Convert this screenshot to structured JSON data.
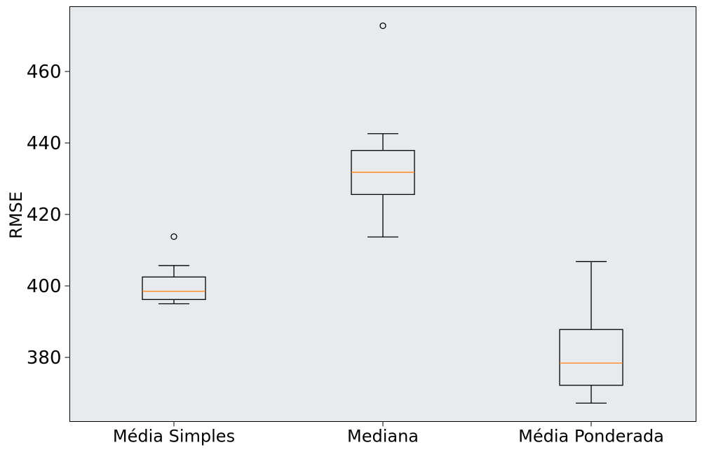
{
  "chart_data": {
    "type": "boxplot",
    "title": "",
    "xlabel": "",
    "ylabel": "RMSE",
    "ylim": [
      362,
      478
    ],
    "yticks": [
      380,
      400,
      420,
      440,
      460
    ],
    "grid": false,
    "categories": [
      "Média Simples",
      "Mediana",
      "Média Ponderada"
    ],
    "boxes": [
      {
        "name": "Média Simples",
        "whisker_low": 395.0,
        "q1": 396.2,
        "median": 398.5,
        "q3": 402.5,
        "whisker_high": 405.7,
        "outliers": [
          413.8
        ]
      },
      {
        "name": "Mediana",
        "whisker_low": 413.7,
        "q1": 425.6,
        "median": 431.8,
        "q3": 437.9,
        "whisker_high": 442.6,
        "outliers": [
          472.8
        ]
      },
      {
        "name": "Média Ponderada",
        "whisker_low": 367.2,
        "q1": 372.2,
        "median": 378.4,
        "q3": 387.8,
        "whisker_high": 406.8,
        "outliers": []
      }
    ]
  },
  "colors": {
    "plot_background": "#e8ebee",
    "box_edge": "#000000",
    "median_line": "#ff7f0e",
    "page_background": "#ffffff"
  }
}
